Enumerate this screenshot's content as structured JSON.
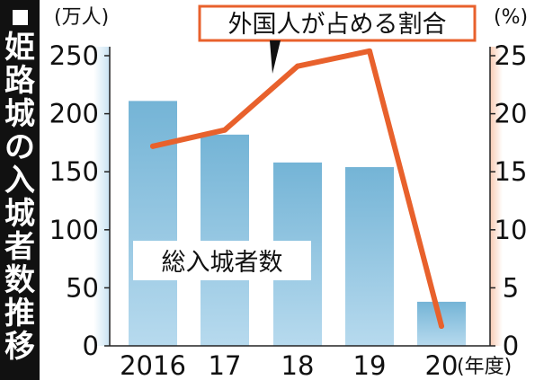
{
  "title": "姫路城の入城者数推移",
  "chart_data": {
    "type": "bar",
    "categories": [
      "2016",
      "17",
      "18",
      "19",
      "20"
    ],
    "x_unit": "(年度)",
    "left_axis": {
      "unit": "(万人)",
      "range": [
        0,
        250
      ],
      "ticks": [
        "0",
        "50",
        "100",
        "150",
        "200",
        "250"
      ]
    },
    "right_axis": {
      "unit": "(%)",
      "range": [
        0,
        25
      ],
      "ticks": [
        "0",
        "5",
        "10",
        "15",
        "20",
        "25"
      ]
    },
    "series": [
      {
        "name": "総入城者数",
        "type": "bar",
        "axis": "left",
        "values": [
          211,
          182,
          158,
          154,
          38
        ]
      },
      {
        "name": "外国人が占める割合",
        "type": "line",
        "axis": "right",
        "values": [
          17.2,
          18.6,
          24.1,
          25.4,
          1.7
        ]
      }
    ],
    "colors": {
      "bar": "#7ab8d9",
      "line": "#e8612c",
      "left_band": "#dceef8",
      "right_band": "#fbe1d3"
    }
  }
}
